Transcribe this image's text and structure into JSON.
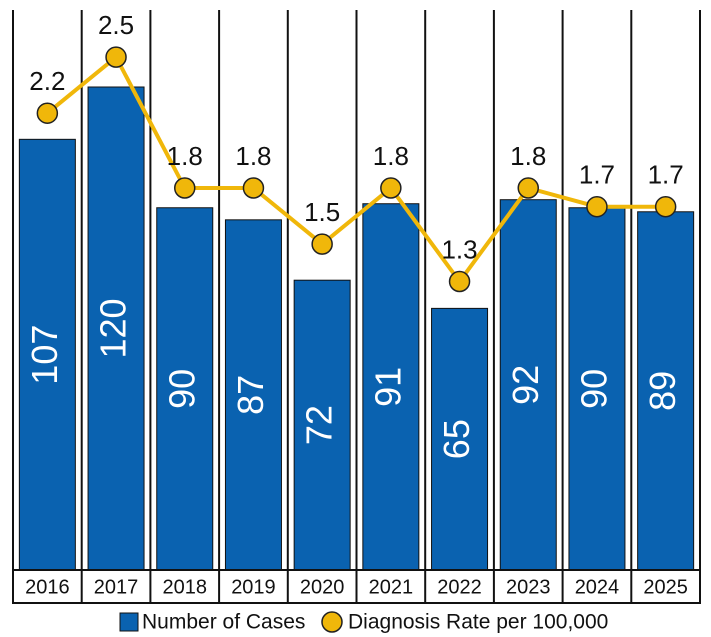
{
  "chart_data": {
    "type": "bar-line",
    "categories": [
      "2016",
      "2017",
      "2018",
      "2019",
      "2020",
      "2021",
      "2022",
      "2023",
      "2024",
      "2025"
    ],
    "series": [
      {
        "name": "Number of Cases",
        "color": "#0a62b0",
        "values": [
          107,
          120,
          90,
          87,
          72,
          91,
          65,
          92,
          90,
          89
        ]
      },
      {
        "name": "Diagnosis Rate per 100,000",
        "color": "#f0b70a",
        "values": [
          2.2,
          2.5,
          1.8,
          1.8,
          1.5,
          1.8,
          1.3,
          1.8,
          1.7,
          1.7
        ]
      }
    ]
  }
}
